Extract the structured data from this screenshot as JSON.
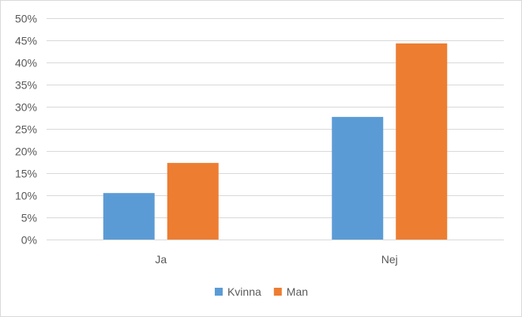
{
  "chart_data": {
    "type": "bar",
    "title": "",
    "xlabel": "",
    "ylabel": "",
    "categories": [
      "Ja",
      "Nej"
    ],
    "series": [
      {
        "name": "Kvinna",
        "color": "#5b9bd5",
        "values": [
          10.5,
          27.7
        ]
      },
      {
        "name": "Man",
        "color": "#ed7d31",
        "values": [
          17.3,
          44.3
        ]
      }
    ],
    "ylim": [
      0,
      50
    ],
    "yticks": [
      "0%",
      "5%",
      "10%",
      "15%",
      "20%",
      "25%",
      "30%",
      "35%",
      "40%",
      "45%",
      "50%"
    ],
    "grid": true,
    "gridColor": "#d9d9d9",
    "legend": "bottom-center"
  }
}
